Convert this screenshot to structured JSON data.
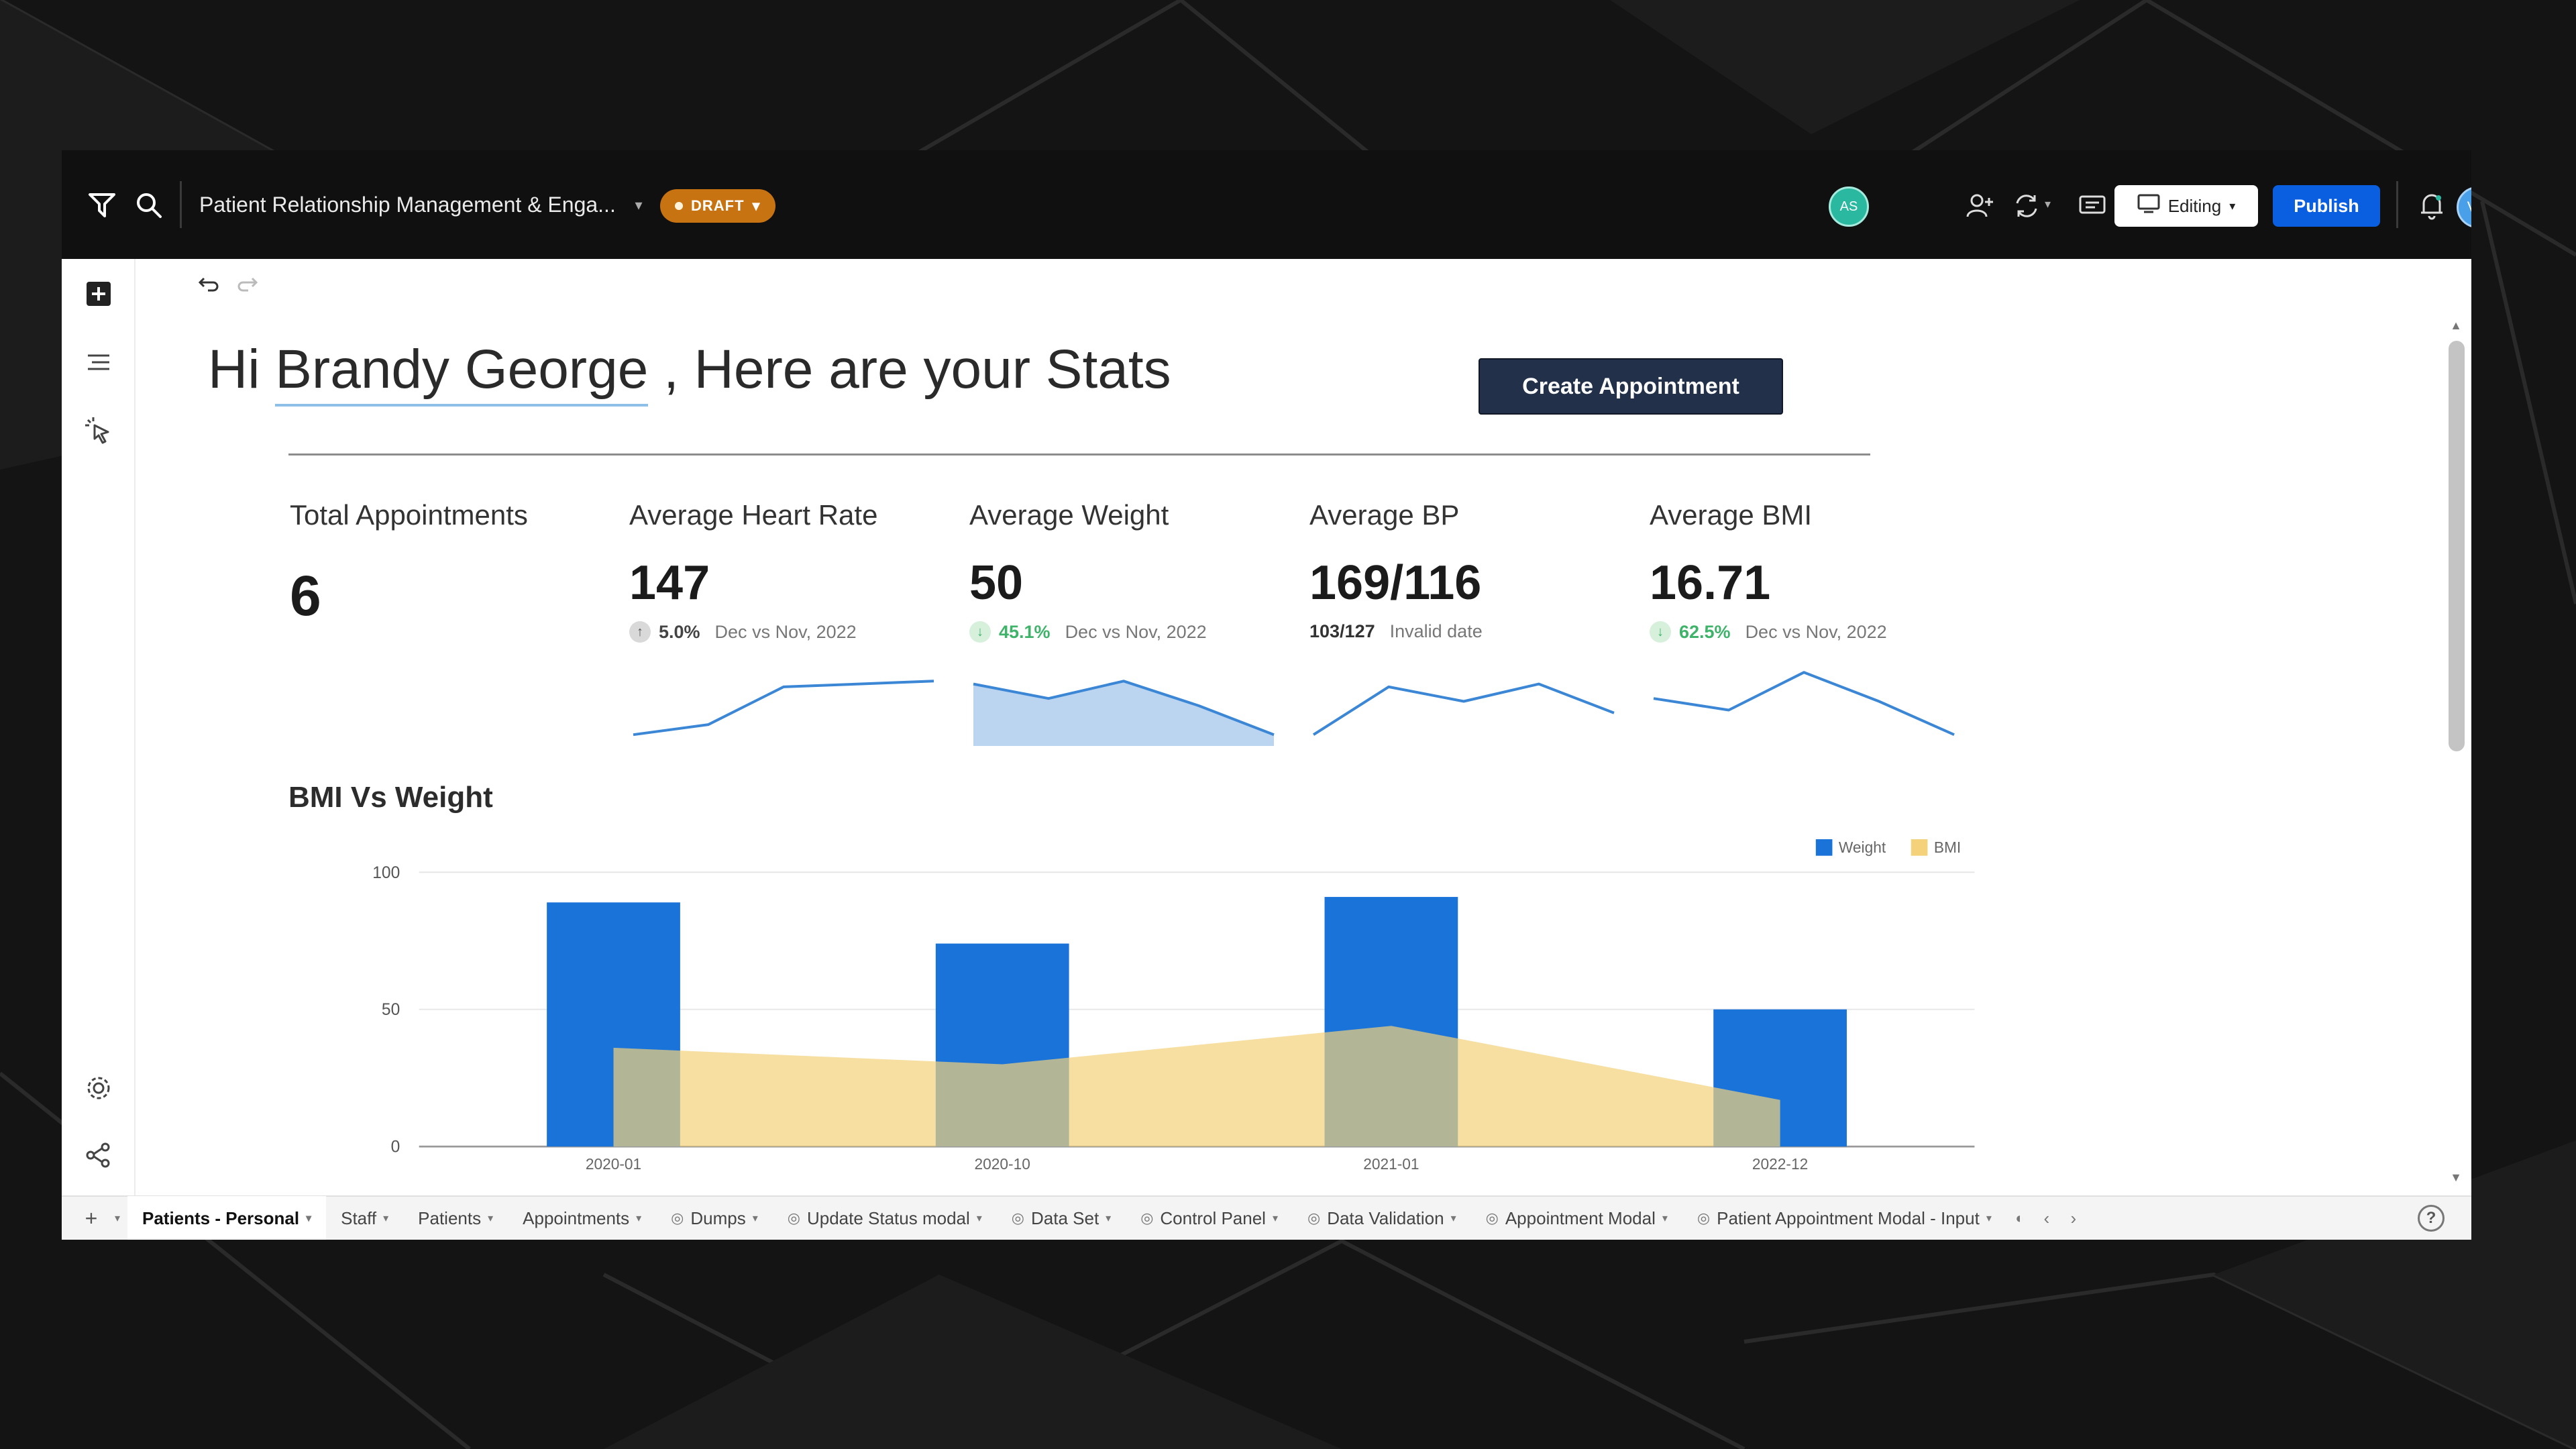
{
  "topbar": {
    "app_title": "Patient Relationship Management & Enga...",
    "draft_label": "DRAFT",
    "collaborator_initials": "AS",
    "editing_label": "Editing",
    "publish_label": "Publish",
    "user_initials": "VD"
  },
  "greeting": {
    "prefix": "Hi ",
    "name": "Brandy George",
    "suffix": " , Here are your Stats"
  },
  "create_button": "Create Appointment",
  "kpis": [
    {
      "label": "Total Appointments",
      "value": "6",
      "delta": "",
      "period": ""
    },
    {
      "label": "Average Heart Rate",
      "value": "147",
      "delta": "5.0%",
      "period": "Dec vs Nov, 2022",
      "trend": "up"
    },
    {
      "label": "Average Weight",
      "value": "50",
      "delta": "45.1%",
      "period": "Dec vs Nov, 2022",
      "trend": "down"
    },
    {
      "label": "Average BP",
      "value": "169/116",
      "delta": "103/127",
      "period": "Invalid date",
      "trend": "none"
    },
    {
      "label": "Average BMI",
      "value": "16.71",
      "delta": "62.5%",
      "period": "Dec vs Nov, 2022",
      "trend": "down"
    }
  ],
  "colors": {
    "weight": "#1a73d8",
    "bmi": "#f3d27a",
    "spark": "#3b87d6",
    "delta_up": "#444444",
    "delta_down": "#3fb36a"
  },
  "icons": {
    "logo": "logo-icon",
    "search": "search-icon",
    "add_user": "add-user-icon",
    "sync": "sync-icon",
    "comment": "comment-icon",
    "monitor": "monitor-icon",
    "bell": "bell-icon",
    "plus": "plus-square-icon",
    "layers": "layers-icon",
    "select": "select-cursor-icon",
    "settings": "gear-icon",
    "share": "share-icon",
    "undo": "undo-icon",
    "redo": "redo-icon",
    "help": "help-icon"
  },
  "chart_data": {
    "type": "bar",
    "title": "BMI Vs Weight",
    "categories": [
      "2020-01",
      "2020-10",
      "2021-01",
      "2022-12"
    ],
    "series": [
      {
        "name": "Weight",
        "type": "bar",
        "values": [
          89,
          74,
          91,
          50
        ]
      },
      {
        "name": "BMI",
        "type": "area",
        "values": [
          36,
          30,
          44,
          17
        ]
      }
    ],
    "ylim": [
      0,
      100
    ],
    "yticks": [
      0,
      50,
      100
    ],
    "grid": true,
    "legend": "top-right"
  },
  "sparklines": [
    {
      "type": "line",
      "values": [
        5,
        12,
        38,
        40,
        42
      ]
    },
    {
      "type": "area",
      "values": [
        40,
        30,
        42,
        25,
        5
      ]
    },
    {
      "type": "line",
      "values": [
        5,
        38,
        28,
        40,
        20
      ]
    },
    {
      "type": "line",
      "values": [
        30,
        22,
        48,
        28,
        5
      ]
    }
  ],
  "tabs": [
    {
      "label": "Patients - Personal",
      "active": true,
      "eye": false
    },
    {
      "label": "Staff",
      "active": false,
      "eye": false
    },
    {
      "label": "Patients",
      "active": false,
      "eye": false
    },
    {
      "label": "Appointments",
      "active": false,
      "eye": false
    },
    {
      "label": "Dumps",
      "active": false,
      "eye": true
    },
    {
      "label": "Update Status modal",
      "active": false,
      "eye": true
    },
    {
      "label": "Data Set",
      "active": false,
      "eye": true
    },
    {
      "label": "Control Panel",
      "active": false,
      "eye": true
    },
    {
      "label": "Data Validation",
      "active": false,
      "eye": true
    },
    {
      "label": "Appointment Modal",
      "active": false,
      "eye": true
    },
    {
      "label": "Patient Appointment Modal - Input",
      "active": false,
      "eye": true
    }
  ]
}
